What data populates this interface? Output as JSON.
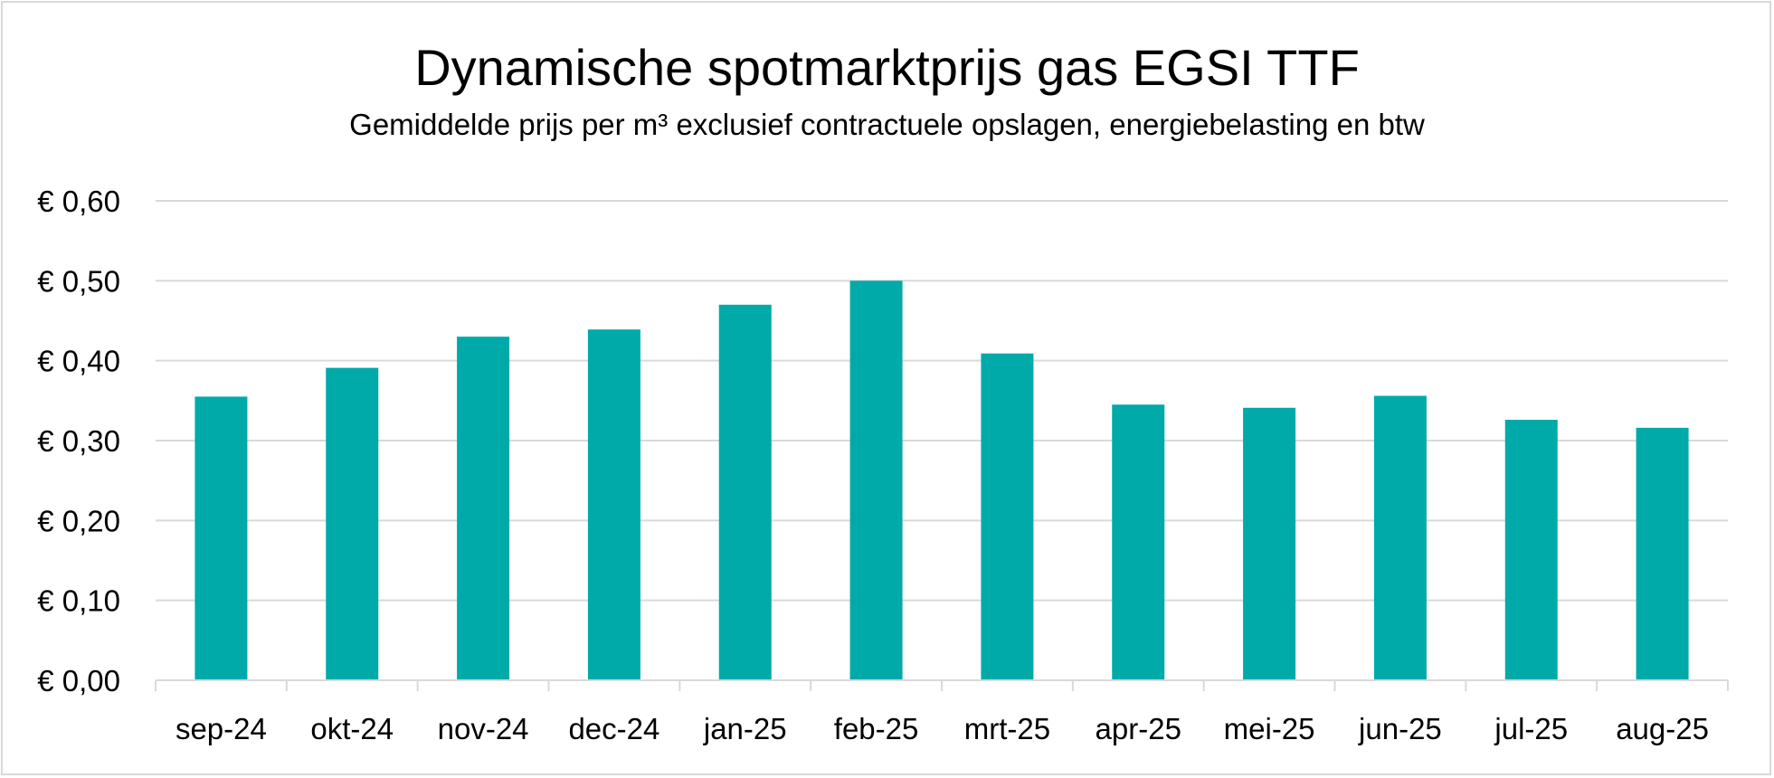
{
  "chart_data": {
    "type": "bar",
    "title": "Dynamische spotmarktprijs gas EGSI TTF",
    "subtitle": "Gemiddelde prijs per m³ exclusief contractuele opslagen, energiebelasting en btw",
    "xlabel": "",
    "ylabel": "",
    "categories": [
      "sep-24",
      "okt-24",
      "nov-24",
      "dec-24",
      "jan-25",
      "feb-25",
      "mrt-25",
      "apr-25",
      "mei-25",
      "jun-25",
      "jul-25",
      "aug-25"
    ],
    "values": [
      0.355,
      0.391,
      0.43,
      0.439,
      0.47,
      0.5,
      0.409,
      0.345,
      0.341,
      0.356,
      0.326,
      0.316
    ],
    "ylim": [
      0,
      0.6
    ],
    "yticks": [
      0,
      0.1,
      0.2,
      0.3,
      0.4,
      0.5,
      0.6
    ],
    "ytick_labels": [
      "€ 0,00",
      "€ 0,10",
      "€ 0,20",
      "€ 0,30",
      "€ 0,40",
      "€ 0,50",
      "€ 0,60"
    ],
    "grid": true,
    "legend": "none",
    "colors": {
      "bar": "#00aaa9",
      "grid": "#d9d9d9",
      "axis": "#d9d9d9",
      "text": "#000000"
    }
  }
}
